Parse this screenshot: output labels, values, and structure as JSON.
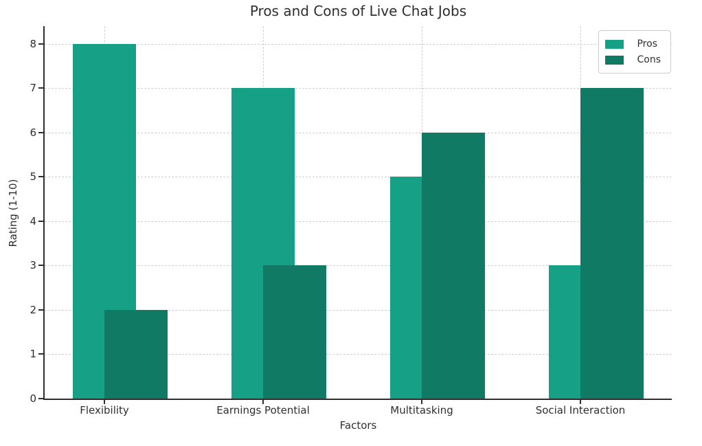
{
  "page": {
    "background": "#ffffff"
  },
  "chart_data": {
    "type": "bar",
    "title": "Pros and Cons of Live Chat Jobs",
    "xlabel": "Factors",
    "ylabel": "Rating (1-10)",
    "categories": [
      "Flexibility",
      "Earnings Potential",
      "Multitasking",
      "Social Interaction"
    ],
    "series": [
      {
        "name": "Pros",
        "values": [
          8,
          7,
          5,
          3
        ],
        "color": "#16a085"
      },
      {
        "name": "Cons",
        "values": [
          2,
          3,
          6,
          7
        ],
        "color": "#117a65"
      }
    ],
    "ylim": [
      0,
      8.4
    ],
    "yticks": [
      0,
      1,
      2,
      3,
      4,
      5,
      6,
      7,
      8
    ],
    "grid": true,
    "grid_style": "dashed",
    "bar_layout": "overlapping-offset",
    "legend_position": "upper right",
    "legend_entries": [
      "Pros",
      "Cons"
    ]
  }
}
